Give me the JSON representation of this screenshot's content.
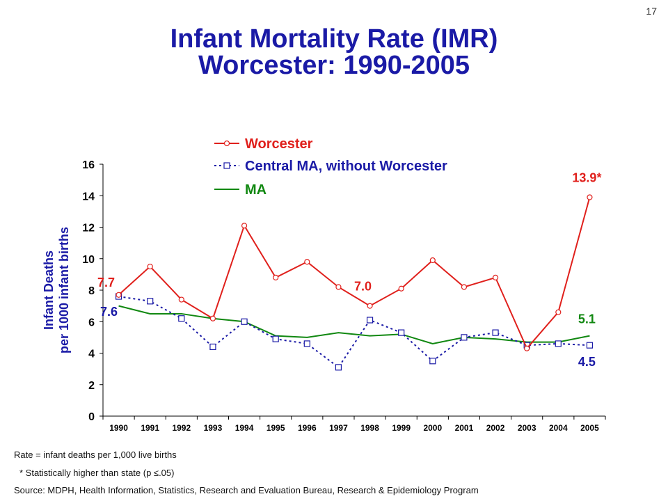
{
  "slide_number": "17",
  "title_line1": "Infant Mortality Rate (IMR)",
  "title_line2": "Worcester: 1990-2005",
  "notes": {
    "rate": "Rate = infant deaths per 1,000 live births",
    "significance": "* Statistically higher than state (p ≤.05)",
    "source": "Source:  MDPH, Health Information, Statistics, Research and Evaluation Bureau, Research & Epidemiology Program"
  },
  "chart_data": {
    "type": "line",
    "x": [
      "1990",
      "1991",
      "1992",
      "1993",
      "1994",
      "1995",
      "1996",
      "1997",
      "1998",
      "1999",
      "2000",
      "2001",
      "2002",
      "2003",
      "2004",
      "2005"
    ],
    "ylabel_line1": "Infant Deaths",
    "ylabel_line2": "per 1000 infant births",
    "ylim": [
      0,
      16
    ],
    "yticks": [
      0,
      2,
      4,
      6,
      8,
      10,
      12,
      14,
      16
    ],
    "grid": false,
    "legend_position": "top-center",
    "series": [
      {
        "name": "Worcester",
        "color": "#e0201c",
        "style": "solid",
        "marker": "circle",
        "values": [
          7.7,
          9.5,
          7.4,
          6.2,
          12.1,
          8.8,
          9.8,
          8.2,
          7.0,
          8.1,
          9.9,
          8.2,
          8.8,
          4.3,
          6.6,
          13.9
        ]
      },
      {
        "name": "Central MA, without Worcester",
        "color": "#1a1aa6",
        "style": "dashed",
        "marker": "square",
        "values": [
          7.6,
          7.3,
          6.2,
          4.4,
          6.0,
          4.9,
          4.6,
          3.1,
          6.1,
          5.3,
          3.5,
          5.0,
          5.3,
          4.5,
          4.6,
          4.5
        ]
      },
      {
        "name": "MA",
        "color": "#118811",
        "style": "solid",
        "marker": "none",
        "values": [
          7.0,
          6.5,
          6.5,
          6.2,
          6.0,
          5.1,
          5.0,
          5.3,
          5.1,
          5.2,
          4.6,
          5.0,
          4.9,
          4.7,
          4.7,
          5.1
        ]
      }
    ],
    "annotations": [
      {
        "text": "7.7",
        "series": 0,
        "index": 0,
        "color": "#e0201c"
      },
      {
        "text": "7.6",
        "series": 1,
        "index": 0,
        "color": "#1a1aa6"
      },
      {
        "text": "7.0",
        "series": 0,
        "index": 8,
        "color": "#e0201c"
      },
      {
        "text": "13.9*",
        "series": 0,
        "index": 15,
        "color": "#e0201c"
      },
      {
        "text": "5.1",
        "series": 2,
        "index": 15,
        "color": "#118811"
      },
      {
        "text": "4.5",
        "series": 1,
        "index": 15,
        "color": "#1a1aa6"
      }
    ]
  }
}
